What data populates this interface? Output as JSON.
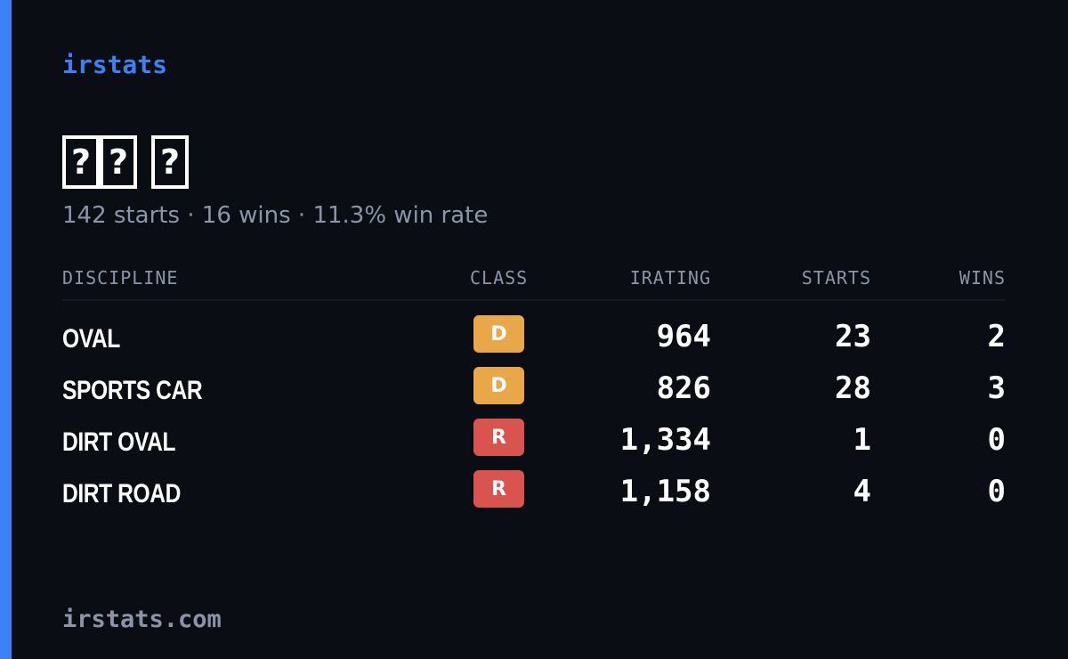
{
  "brand": "irstats",
  "driver": {
    "name_glyphs": [
      "?",
      "?",
      "?"
    ],
    "summary": "142 starts · 16 wins · 11.3% win rate"
  },
  "table": {
    "headers": {
      "discipline": "DISCIPLINE",
      "class": "CLASS",
      "irating": "IRATING",
      "starts": "STARTS",
      "wins": "WINS"
    },
    "rows": [
      {
        "discipline": "OVAL",
        "class": "D",
        "class_color": "#e8a84a",
        "irating": "964",
        "starts": "23",
        "wins": "2"
      },
      {
        "discipline": "SPORTS CAR",
        "class": "D",
        "class_color": "#e8a84a",
        "irating": "826",
        "starts": "28",
        "wins": "3"
      },
      {
        "discipline": "DIRT OVAL",
        "class": "R",
        "class_color": "#d9534f",
        "irating": "1,334",
        "starts": "1",
        "wins": "0"
      },
      {
        "discipline": "DIRT ROAD",
        "class": "R",
        "class_color": "#d9534f",
        "irating": "1,158",
        "starts": "4",
        "wins": "0"
      }
    ]
  },
  "footer": "irstats.com",
  "colors": {
    "background": "#0a0d14",
    "accent": "#3b82f6",
    "muted_text": "#8b95a7"
  }
}
